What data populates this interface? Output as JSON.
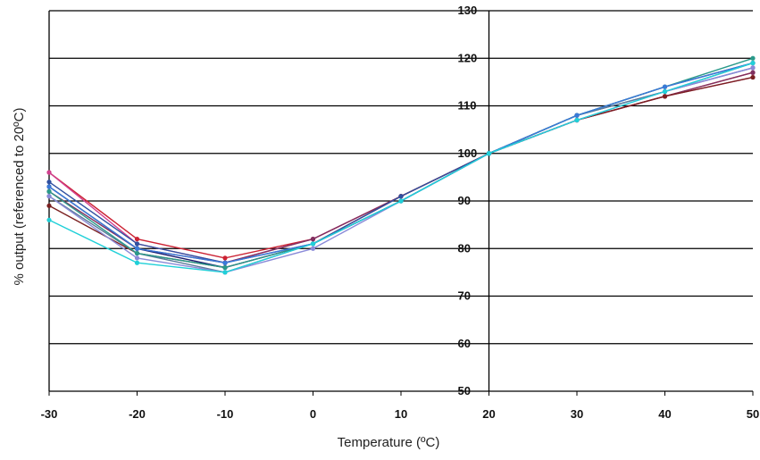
{
  "chart_data": {
    "type": "line",
    "title": "",
    "xlabel": "Temperature (ºC)",
    "ylabel": "% output (referenced to 20ºC)",
    "xlim": [
      -30,
      50
    ],
    "ylim": [
      50,
      130
    ],
    "xticks": [
      -30,
      -20,
      -10,
      0,
      10,
      20,
      30,
      40,
      50
    ],
    "yticks": [
      50,
      60,
      70,
      80,
      90,
      100,
      110,
      120,
      130
    ],
    "grid": "horizontal",
    "legend": "none",
    "x": [
      -30,
      -20,
      -10,
      0,
      10,
      20,
      30,
      40,
      50
    ],
    "series": [
      {
        "color": "#cc2233",
        "values": [
          96,
          82,
          78,
          82,
          91,
          100,
          107,
          112,
          117
        ]
      },
      {
        "color": "#d04090",
        "values": [
          96,
          81,
          77,
          82,
          91,
          100,
          107,
          112,
          116
        ]
      },
      {
        "color": "#803060",
        "values": [
          92,
          80,
          77,
          82,
          91,
          100,
          107,
          112,
          117
        ]
      },
      {
        "color": "#7a2020",
        "values": [
          89,
          79,
          76,
          81,
          91,
          100,
          107,
          112,
          116
        ]
      },
      {
        "color": "#3050a0",
        "values": [
          94,
          81,
          77,
          81,
          91,
          100,
          108,
          113,
          118
        ]
      },
      {
        "color": "#1a1a6e",
        "values": [
          93,
          80,
          76,
          81,
          90,
          100,
          108,
          114,
          119
        ]
      },
      {
        "color": "#5a7a9a",
        "values": [
          91,
          79,
          75,
          81,
          90,
          100,
          108,
          113,
          119
        ]
      },
      {
        "color": "#8a8ad8",
        "values": [
          91,
          78,
          75,
          80,
          90,
          100,
          107,
          113,
          118
        ]
      },
      {
        "color": "#2a9a8a",
        "values": [
          92,
          79,
          76,
          81,
          90,
          100,
          108,
          114,
          120
        ]
      },
      {
        "color": "#3a7ad8",
        "values": [
          93,
          80,
          77,
          81,
          90,
          100,
          108,
          114,
          119
        ]
      },
      {
        "color": "#20d0d8",
        "values": [
          86,
          77,
          75,
          81,
          90,
          100,
          107,
          113,
          119
        ]
      }
    ]
  }
}
